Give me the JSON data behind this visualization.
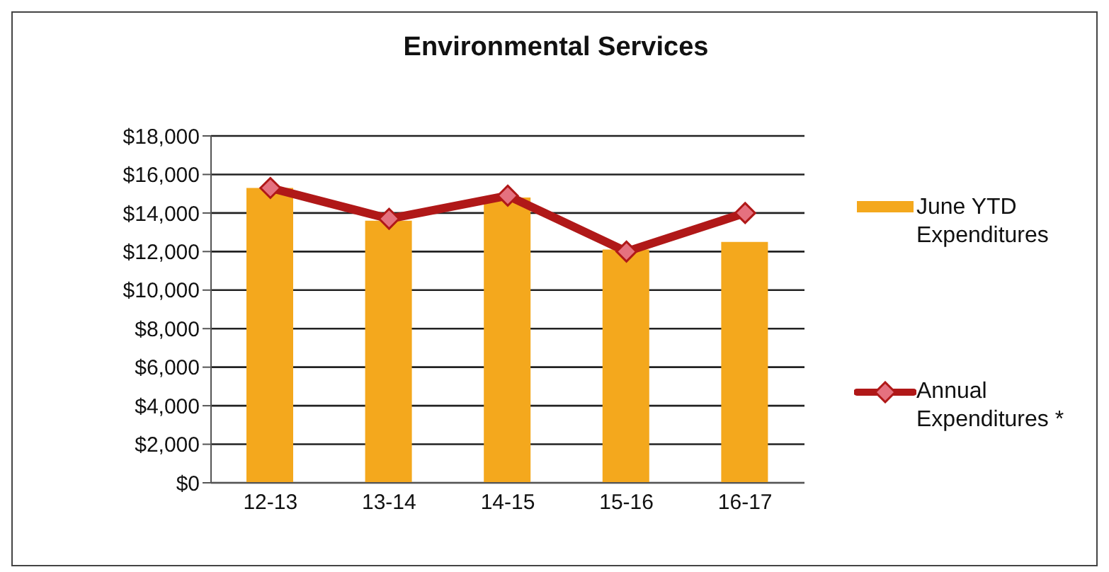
{
  "chart_data": {
    "type": "bar",
    "title": "Environmental Services",
    "categories": [
      "12-13",
      "13-14",
      "14-15",
      "15-16",
      "16-17"
    ],
    "series": [
      {
        "name": "June YTD Expenditures",
        "color": "#f4a81d",
        "values": [
          15300,
          13600,
          14800,
          12100,
          12500
        ]
      },
      {
        "name": "Annual Expenditures *",
        "type": "line",
        "color": "#b01818",
        "values": [
          15300,
          13700,
          14900,
          12000,
          14000
        ]
      }
    ],
    "ylim": [
      0,
      18000
    ],
    "yticks": [
      {
        "value": 0,
        "label": "$0"
      },
      {
        "value": 2000,
        "label": "$2,000"
      },
      {
        "value": 4000,
        "label": "$4,000"
      },
      {
        "value": 6000,
        "label": "$6,000"
      },
      {
        "value": 8000,
        "label": "$8,000"
      },
      {
        "value": 10000,
        "label": "$10,000"
      },
      {
        "value": 12000,
        "label": "$12,000"
      },
      {
        "value": 14000,
        "label": "$14,000"
      },
      {
        "value": 16000,
        "label": "$16,000"
      },
      {
        "value": 18000,
        "label": "$18,000"
      }
    ],
    "grid": "y",
    "legend": "right",
    "marker": "diamond",
    "line_style": "solid"
  }
}
